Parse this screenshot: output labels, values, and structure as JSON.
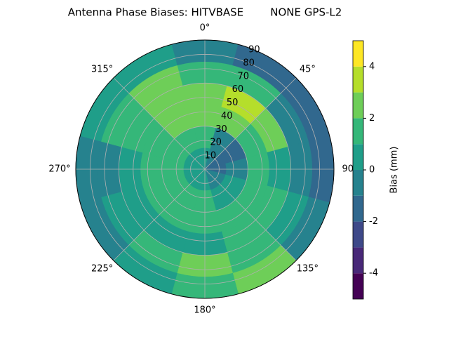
{
  "chart_data": {
    "type": "polar-contour",
    "title": "Antenna Phase Biases: HITVBASE        NONE GPS-L2",
    "theta_zero": "N",
    "theta_direction": "clockwise",
    "azimuth_bins": [
      -15,
      15,
      45,
      75,
      105,
      135,
      165,
      195,
      225,
      255,
      285,
      315,
      345
    ],
    "radius_bins": [
      0,
      15,
      30,
      45,
      60,
      75,
      90
    ],
    "z": [
      [
        0,
        -0.5,
        -2,
        -2,
        -1,
        -0.5,
        0,
        0,
        0,
        0,
        0,
        0
      ],
      [
        1,
        -1,
        -2,
        -1,
        0,
        0,
        1,
        1,
        1,
        1,
        1,
        1
      ],
      [
        2,
        2,
        1,
        1,
        1,
        1,
        1,
        1,
        1,
        1,
        1,
        2
      ],
      [
        2,
        3,
        2,
        0,
        1,
        1,
        0,
        0,
        0,
        0,
        1,
        2
      ],
      [
        1,
        1,
        -1,
        -1,
        0,
        1,
        2,
        1,
        0,
        -1,
        1,
        2
      ],
      [
        -1,
        -2,
        -2,
        -2,
        -1,
        2,
        1,
        0,
        -1,
        -1,
        0,
        0
      ]
    ],
    "levels": [
      -5,
      -4,
      -3,
      -2,
      -1,
      0,
      1,
      2,
      3,
      4,
      5
    ],
    "colors": [
      "#440154",
      "#482878",
      "#3e4989",
      "#31688e",
      "#26828e",
      "#1f9e89",
      "#35b779",
      "#6ece58",
      "#b5de2b",
      "#fde725"
    ],
    "rlim": [
      0,
      90
    ],
    "rticks": [
      10,
      20,
      30,
      40,
      50,
      60,
      70,
      80,
      90
    ],
    "thetaticks": [
      {
        "value": 0,
        "label": "0°"
      },
      {
        "value": 45,
        "label": "45°"
      },
      {
        "value": 90,
        "label": "90°"
      },
      {
        "value": 135,
        "label": "135°"
      },
      {
        "value": 180,
        "label": "180°"
      },
      {
        "value": 225,
        "label": "225°"
      },
      {
        "value": 270,
        "label": "270°"
      },
      {
        "value": 315,
        "label": "315°"
      }
    ],
    "colorbar_label": "Bias (mm)",
    "clim": [
      -5,
      5
    ],
    "colorbar_ticks": [
      -4,
      -2,
      0,
      2,
      4
    ],
    "grid": true
  }
}
